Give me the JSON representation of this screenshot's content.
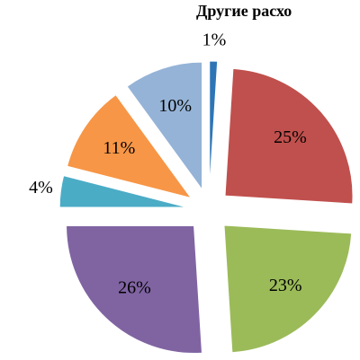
{
  "chart_data": {
    "type": "pie",
    "title": "Другие расхо",
    "categories": [
      null,
      null,
      null,
      null,
      null,
      null,
      null
    ],
    "values": [
      1,
      25,
      23,
      26,
      4,
      11,
      10
    ],
    "value_labels": [
      "1%",
      "25%",
      "23%",
      "26%",
      "4%",
      "11%",
      "10%"
    ],
    "colors": [
      "#2e75b6",
      "#c0504d",
      "#9bbb59",
      "#8064a2",
      "#4bacc6",
      "#f79646",
      "#95b3d7"
    ]
  }
}
